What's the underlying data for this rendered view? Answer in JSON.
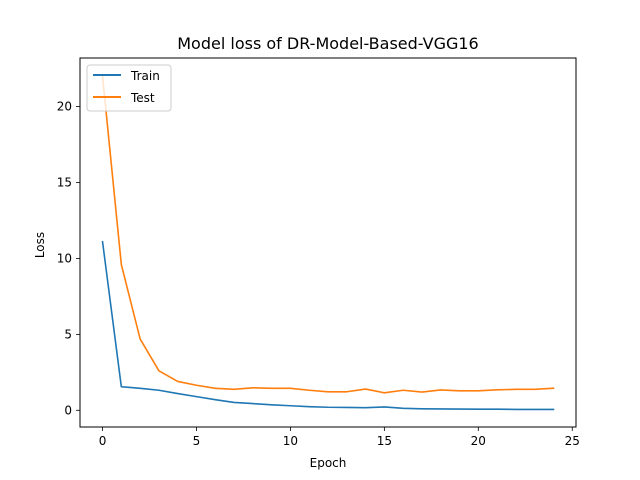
{
  "chart_data": {
    "type": "line",
    "title": "Model loss of DR-Model-Based-VGG16",
    "xlabel": "Epoch",
    "ylabel": "Loss",
    "x": [
      0,
      1,
      2,
      3,
      4,
      5,
      6,
      7,
      8,
      9,
      10,
      11,
      12,
      13,
      14,
      15,
      16,
      17,
      18,
      19,
      20,
      21,
      22,
      23,
      24
    ],
    "xlim": [
      -1.2,
      25.2
    ],
    "ylim": [
      -1.1,
      23.2
    ],
    "xticks": [
      0,
      5,
      10,
      15,
      20,
      25
    ],
    "yticks": [
      0,
      5,
      10,
      15,
      20
    ],
    "grid": false,
    "legend_position": "upper left",
    "series": [
      {
        "name": "Train",
        "color": "#1f77b4",
        "values": [
          11.1,
          1.55,
          1.45,
          1.32,
          1.1,
          0.9,
          0.7,
          0.52,
          0.44,
          0.36,
          0.3,
          0.24,
          0.2,
          0.19,
          0.17,
          0.22,
          0.13,
          0.1,
          0.09,
          0.08,
          0.07,
          0.07,
          0.06,
          0.06,
          0.06
        ]
      },
      {
        "name": "Test",
        "color": "#ff7f0e",
        "values": [
          22.0,
          9.6,
          4.7,
          2.6,
          1.9,
          1.65,
          1.45,
          1.38,
          1.48,
          1.45,
          1.45,
          1.32,
          1.22,
          1.22,
          1.4,
          1.15,
          1.32,
          1.2,
          1.34,
          1.28,
          1.28,
          1.35,
          1.38,
          1.38,
          1.45
        ]
      }
    ]
  }
}
